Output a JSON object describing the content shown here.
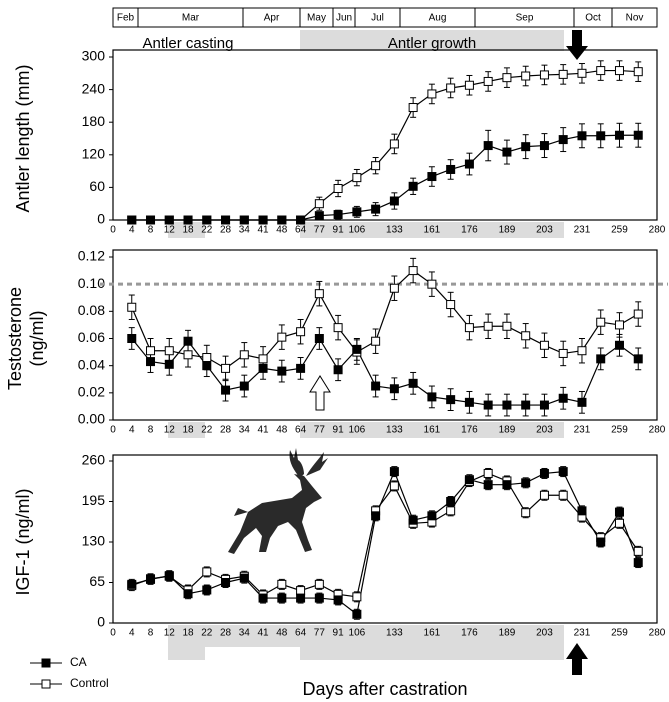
{
  "timeline": {
    "months": [
      "Feb",
      "Mar",
      "Apr",
      "May",
      "Jun",
      "Jul",
      "Aug",
      "Sep",
      "Oct",
      "Nov"
    ],
    "phases": [
      "Antler casting",
      "Antler growth"
    ]
  },
  "chart_data": [
    {
      "type": "line",
      "ylabel": [
        "Antler length (mm)"
      ],
      "categories": [
        "0",
        "4",
        "8",
        "12",
        "18",
        "22",
        "28",
        "34",
        "41",
        "48",
        "64",
        "77",
        "91",
        "106",
        null,
        "133",
        null,
        "161",
        null,
        "176",
        null,
        "189",
        null,
        "203",
        null,
        "231",
        null,
        "259",
        null,
        "280"
      ],
      "ylim": [
        0,
        300
      ],
      "yticks": [
        0,
        60,
        120,
        180,
        240,
        300
      ],
      "series": [
        {
          "name": "CA",
          "color": "#000000",
          "marker_fill": "#000000",
          "values": [
            null,
            0,
            0,
            0,
            0,
            0,
            0,
            0,
            0,
            0,
            0,
            8,
            10,
            15,
            20,
            35,
            62,
            80,
            93,
            103,
            137,
            125,
            135,
            137,
            148,
            155,
            155,
            156,
            156,
            null
          ],
          "errors": [
            null,
            3,
            3,
            3,
            3,
            3,
            3,
            3,
            3,
            3,
            3,
            6,
            8,
            10,
            12,
            15,
            15,
            18,
            18,
            20,
            28,
            22,
            22,
            22,
            22,
            22,
            22,
            22,
            22,
            null
          ]
        },
        {
          "name": "Control",
          "color": "#000000",
          "marker_fill": "#ffffff",
          "values": [
            null,
            0,
            0,
            0,
            0,
            0,
            0,
            0,
            0,
            0,
            0,
            30,
            58,
            78,
            100,
            140,
            207,
            232,
            243,
            248,
            255,
            262,
            265,
            267,
            268,
            270,
            275,
            275,
            273,
            null
          ],
          "errors": [
            null,
            3,
            3,
            3,
            3,
            3,
            3,
            3,
            3,
            3,
            3,
            12,
            15,
            15,
            15,
            18,
            18,
            18,
            18,
            18,
            18,
            18,
            18,
            18,
            18,
            18,
            18,
            18,
            18,
            null
          ]
        }
      ]
    },
    {
      "type": "line",
      "ylabel": [
        "Testosterone",
        "(ng/ml)"
      ],
      "categories": [
        "0",
        "4",
        "8",
        "12",
        "18",
        "22",
        "28",
        "34",
        "41",
        "48",
        "64",
        "77",
        "91",
        "106",
        null,
        "133",
        null,
        "161",
        null,
        "176",
        null,
        "189",
        null,
        "203",
        null,
        "231",
        null,
        "259",
        null,
        "280"
      ],
      "ylim": [
        0,
        0.12
      ],
      "yticks": [
        {
          "value": 0,
          "label": "0.00"
        },
        0.02,
        0.04,
        0.06,
        0.08,
        {
          "value": 0.1,
          "label": "0.10"
        },
        0.12
      ],
      "reference_line": 0.1,
      "series": [
        {
          "name": "CA",
          "color": "#000000",
          "marker_fill": "#000000",
          "values": [
            null,
            0.06,
            0.043,
            0.041,
            0.058,
            0.04,
            0.022,
            0.025,
            0.038,
            0.036,
            0.038,
            0.06,
            0.037,
            0.052,
            0.025,
            0.023,
            0.027,
            0.017,
            0.015,
            0.013,
            0.011,
            0.011,
            0.011,
            0.011,
            0.016,
            0.013,
            0.045,
            0.055,
            0.045,
            null
          ],
          "errors": [
            null,
            0.008,
            0.008,
            0.008,
            0.008,
            0.008,
            0.008,
            0.008,
            0.008,
            0.008,
            0.008,
            0.008,
            0.008,
            0.008,
            0.008,
            0.008,
            0.008,
            0.008,
            0.008,
            0.008,
            0.008,
            0.008,
            0.008,
            0.008,
            0.008,
            0.008,
            0.008,
            0.008,
            0.008,
            null
          ]
        },
        {
          "name": "Control",
          "color": "#000000",
          "marker_fill": "#ffffff",
          "values": [
            null,
            0.083,
            0.051,
            0.051,
            0.048,
            0.046,
            0.038,
            0.048,
            0.045,
            0.061,
            0.065,
            0.093,
            0.068,
            0.05,
            0.058,
            0.097,
            0.11,
            0.1,
            0.085,
            0.068,
            0.069,
            0.069,
            0.062,
            0.055,
            0.049,
            0.051,
            0.072,
            0.07,
            0.078,
            null
          ],
          "errors": [
            null,
            0.009,
            0.009,
            0.009,
            0.009,
            0.009,
            0.009,
            0.009,
            0.009,
            0.009,
            0.009,
            0.009,
            0.009,
            0.009,
            0.009,
            0.009,
            0.009,
            0.009,
            0.009,
            0.009,
            0.009,
            0.009,
            0.009,
            0.009,
            0.009,
            0.009,
            0.009,
            0.009,
            0.009,
            null
          ]
        }
      ]
    },
    {
      "type": "line",
      "ylabel": [
        "IGF-1 (ng/ml)"
      ],
      "xlabel": "Days after castration",
      "categories": [
        "0",
        "4",
        "8",
        "12",
        "18",
        "22",
        "28",
        "34",
        "41",
        "48",
        "64",
        "77",
        "91",
        "106",
        null,
        "133",
        null,
        "161",
        null,
        "176",
        null,
        "189",
        null,
        "203",
        null,
        "231",
        null,
        "259",
        null,
        "280"
      ],
      "ylim": [
        0,
        260
      ],
      "yticks": [
        0,
        65,
        130,
        195,
        260
      ],
      "series": [
        {
          "name": "CA",
          "color": "#000000",
          "marker_fill": "#000000",
          "values": [
            null,
            62,
            70,
            76,
            47,
            53,
            65,
            72,
            40,
            40,
            40,
            40,
            37,
            14,
            172,
            243,
            165,
            172,
            195,
            230,
            222,
            222,
            225,
            240,
            243,
            180,
            130,
            178,
            97,
            null
          ],
          "errors": [
            null,
            8,
            8,
            8,
            8,
            8,
            8,
            8,
            8,
            8,
            8,
            8,
            8,
            8,
            8,
            8,
            8,
            8,
            8,
            8,
            8,
            8,
            8,
            8,
            8,
            8,
            8,
            8,
            8,
            null
          ]
        },
        {
          "name": "Control",
          "color": "#000000",
          "marker_fill": "#ffffff",
          "values": [
            null,
            60,
            71,
            75,
            53,
            82,
            70,
            75,
            45,
            62,
            52,
            62,
            46,
            42,
            180,
            220,
            160,
            162,
            180,
            227,
            240,
            228,
            177,
            205,
            205,
            170,
            137,
            160,
            115,
            null
          ],
          "errors": [
            null,
            8,
            8,
            8,
            8,
            8,
            8,
            8,
            8,
            8,
            8,
            8,
            8,
            8,
            8,
            8,
            8,
            8,
            8,
            8,
            8,
            8,
            8,
            8,
            8,
            8,
            8,
            8,
            8,
            null
          ]
        }
      ]
    }
  ]
}
